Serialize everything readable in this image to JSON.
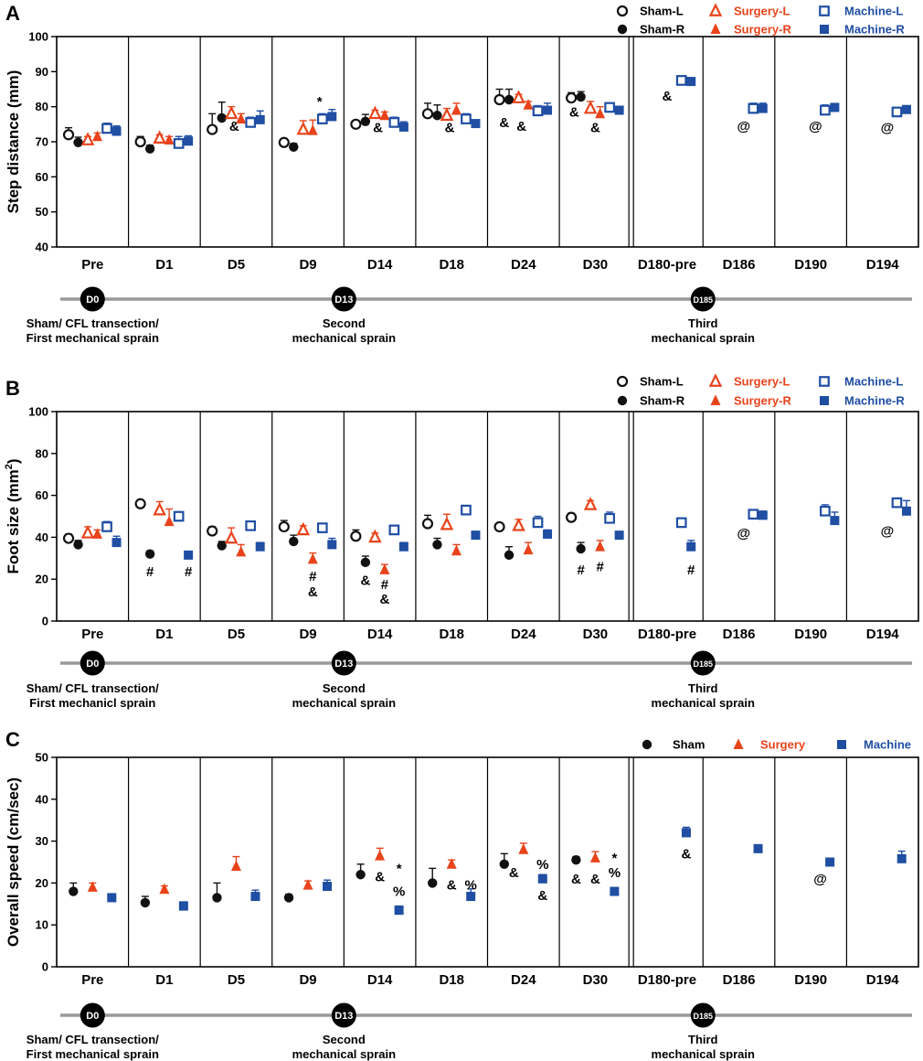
{
  "colors": {
    "sham": "#111111",
    "surgery": "#e8431a",
    "machine": "#1f4ea3",
    "timeline": "#999999"
  },
  "categories": [
    "Pre",
    "D1",
    "D5",
    "D9",
    "D14",
    "D18",
    "D24",
    "D30",
    "D180-pre",
    "D186",
    "D190",
    "D194"
  ],
  "timeline_events": [
    {
      "badge": "D0",
      "lines": [
        "Sham/ CFL transection/",
        "First mechanical sprain"
      ],
      "index": 0
    },
    {
      "badge": "D13",
      "lines": [
        "Second",
        "mechanical sprain"
      ],
      "index": 3.5
    },
    {
      "badge": "D185",
      "lines": [
        "Third",
        "mechanical sprain"
      ],
      "index": 8.5
    }
  ],
  "chart_data": [
    {
      "type": "scatter",
      "panel": "A",
      "ylabel": "Step distance (mm)",
      "ylim": [
        40,
        100
      ],
      "yticks": [
        40,
        50,
        60,
        70,
        80,
        90,
        100
      ],
      "categories": [
        "Pre",
        "D1",
        "D5",
        "D9",
        "D14",
        "D18",
        "D24",
        "D30",
        "D180-pre",
        "D186",
        "D190",
        "D194"
      ],
      "timeline_lines": [
        [
          "Sham/ CFL transection/",
          "First mechanical sprain"
        ],
        [
          "Second",
          "mechanical sprain"
        ],
        [
          "Third",
          "mechanical sprain"
        ]
      ],
      "legend": [
        "Sham-L",
        "Sham-R",
        "Surgery-L",
        "Surgery-R",
        "Machine-L",
        "Machine-R"
      ],
      "series": [
        {
          "name": "Sham-L",
          "group": "sham",
          "filled": false,
          "offset": -2.5,
          "values": [
            72,
            70,
            73.5,
            69.8,
            75,
            78,
            82,
            82.5,
            null,
            null,
            null,
            null
          ],
          "errors": [
            2,
            1.5,
            4.5,
            1,
            1,
            3,
            3,
            1.5,
            null,
            null,
            null,
            null
          ]
        },
        {
          "name": "Sham-R",
          "group": "sham",
          "filled": true,
          "offset": -1.5,
          "values": [
            69.8,
            68,
            76.8,
            68.5,
            75.8,
            77.5,
            82,
            82.8,
            null,
            null,
            null,
            null
          ],
          "errors": [
            1.5,
            1,
            4.5,
            1,
            2,
            3,
            3,
            1.5,
            null,
            null,
            null,
            null
          ]
        },
        {
          "name": "Surgery-L",
          "group": "surgery",
          "filled": false,
          "offset": -0.5,
          "values": [
            70.5,
            71,
            78,
            73.5,
            78,
            77.5,
            82.5,
            79.5,
            null,
            null,
            null,
            null
          ],
          "errors": [
            1,
            1,
            2,
            2.5,
            1,
            2,
            1,
            2,
            null,
            null,
            null,
            null
          ]
        },
        {
          "name": "Surgery-R",
          "group": "surgery",
          "filled": true,
          "offset": 0.5,
          "values": [
            71.5,
            70.5,
            76.5,
            73.2,
            77.5,
            79,
            80.5,
            78,
            null,
            null,
            null,
            null
          ],
          "errors": [
            1,
            1,
            1.5,
            3,
            1,
            2,
            1,
            2,
            null,
            null,
            null,
            null
          ]
        },
        {
          "name": "Machine-L",
          "group": "machine",
          "filled": false,
          "offset": 1.5,
          "values": [
            73.8,
            69.5,
            75.5,
            76.5,
            75.5,
            76.5,
            78.8,
            79.8,
            87.5,
            79.5,
            79,
            78.5
          ],
          "errors": [
            1.5,
            2,
            1.5,
            1.5,
            1.5,
            1.5,
            1.5,
            1,
            1,
            1.5,
            1.5,
            1
          ]
        },
        {
          "name": "Machine-R",
          "group": "machine",
          "filled": true,
          "offset": 2.5,
          "values": [
            73,
            70.2,
            76.3,
            77.2,
            74.2,
            75.2,
            79,
            79,
            87.2,
            79.5,
            79.8,
            79.2
          ],
          "errors": [
            1.5,
            1.5,
            2.5,
            2,
            1.5,
            1,
            2,
            1,
            0.5,
            1.5,
            1,
            1
          ]
        }
      ],
      "annotations": [
        {
          "text": "&",
          "cat": 2,
          "off": -0.2,
          "y": 74.5
        },
        {
          "text": "*",
          "cat": 3,
          "off": 1.2,
          "y": 81.5
        },
        {
          "text": "&",
          "cat": 4,
          "off": -0.2,
          "y": 74
        },
        {
          "text": "&",
          "cat": 5,
          "off": -0.2,
          "y": 74
        },
        {
          "text": "&",
          "cat": 6,
          "off": -2,
          "y": 75.5
        },
        {
          "text": "&",
          "cat": 6,
          "off": -0.2,
          "y": 74.5
        },
        {
          "text": "&",
          "cat": 7,
          "off": -2.2,
          "y": 78.5
        },
        {
          "text": "&",
          "cat": 7,
          "off": 0,
          "y": 74
        },
        {
          "text": "&",
          "cat": 8,
          "off": 0,
          "y": 83
        },
        {
          "text": "@",
          "cat": 9,
          "off": 0.5,
          "y": 74.5
        },
        {
          "text": "@",
          "cat": 10,
          "off": 0.5,
          "y": 74.5
        },
        {
          "text": "@",
          "cat": 11,
          "off": 0.5,
          "y": 74
        }
      ]
    },
    {
      "type": "scatter",
      "panel": "B",
      "ylabel": "Foot size (mm",
      "ylabel_sup": "2",
      "ylabel_end": ")",
      "ylim": [
        0,
        100
      ],
      "yticks": [
        0,
        20,
        40,
        60,
        80,
        100
      ],
      "categories": [
        "Pre",
        "D1",
        "D5",
        "D9",
        "D14",
        "D18",
        "D24",
        "D30",
        "D180-pre",
        "D186",
        "D190",
        "D194"
      ],
      "timeline_lines": [
        [
          "Sham/ CFL transection/",
          "First mechanicl sprain"
        ],
        [
          "Second",
          "mechanical sprain"
        ],
        [
          "Third",
          "mechanical sprain"
        ]
      ],
      "legend": [
        "Sham-L",
        "Sham-R",
        "Surgery-L",
        "Surgery-R",
        "Machine-L",
        "Machine-R"
      ],
      "series": [
        {
          "name": "Sham-L",
          "group": "sham",
          "filled": false,
          "offset": -2.5,
          "values": [
            39.5,
            56,
            43,
            45,
            40.5,
            46.5,
            45,
            49.5,
            null,
            null,
            null,
            null
          ],
          "errors": [
            2,
            1,
            2,
            3,
            3,
            4,
            1,
            2,
            null,
            null,
            null,
            null
          ]
        },
        {
          "name": "Sham-R",
          "group": "sham",
          "filled": true,
          "offset": -1.5,
          "values": [
            36.5,
            32,
            36,
            38,
            28,
            36.5,
            31.5,
            34.5,
            null,
            null,
            null,
            null
          ],
          "errors": [
            2,
            1.5,
            2,
            3,
            3,
            3,
            4,
            3,
            null,
            null,
            null,
            null
          ]
        },
        {
          "name": "Surgery-L",
          "group": "surgery",
          "filled": false,
          "offset": -0.5,
          "values": [
            42,
            53,
            39.5,
            43.5,
            40,
            46,
            45.5,
            55.5,
            null,
            null,
            null,
            null
          ],
          "errors": [
            3,
            4,
            5,
            2,
            2,
            5,
            3,
            2,
            null,
            null,
            null,
            null
          ]
        },
        {
          "name": "Surgery-R",
          "group": "surgery",
          "filled": true,
          "offset": 0.5,
          "values": [
            41.5,
            47.5,
            33,
            29.5,
            24.5,
            33.5,
            34,
            35.5,
            null,
            null,
            null,
            null
          ],
          "errors": [
            2,
            6,
            3.5,
            3,
            2.5,
            3,
            3.5,
            3,
            null,
            null,
            null,
            null
          ]
        },
        {
          "name": "Machine-L",
          "group": "machine",
          "filled": false,
          "offset": 1.5,
          "values": [
            45,
            50,
            45.5,
            44.5,
            43.5,
            53,
            47,
            49,
            47,
            51,
            52.5,
            56.5
          ],
          "errors": [
            2.5,
            2,
            2,
            2,
            2,
            2,
            3,
            3,
            2,
            2,
            3,
            2
          ]
        },
        {
          "name": "Machine-R",
          "group": "machine",
          "filled": true,
          "offset": 2.5,
          "values": [
            37.5,
            31.5,
            35.5,
            36.5,
            35.5,
            41,
            41.5,
            41,
            35.5,
            50.5,
            48,
            52.5
          ],
          "errors": [
            3,
            1.5,
            2,
            3,
            2,
            1.5,
            2,
            1.5,
            3,
            2,
            4,
            5
          ]
        }
      ],
      "annotations": [
        {
          "text": "#",
          "cat": 1,
          "off": -1.5,
          "y": 23.5
        },
        {
          "text": "#",
          "cat": 1,
          "off": 2.5,
          "y": 23.5
        },
        {
          "text": "#",
          "cat": 3,
          "off": 0.5,
          "y": 21.5
        },
        {
          "text": "&",
          "cat": 3,
          "off": 0.5,
          "y": 14
        },
        {
          "text": "&",
          "cat": 4,
          "off": -1.5,
          "y": 19.5
        },
        {
          "text": "#",
          "cat": 4,
          "off": 0.5,
          "y": 17.5
        },
        {
          "text": "&",
          "cat": 4,
          "off": 0.5,
          "y": 10.5
        },
        {
          "text": "#",
          "cat": 7,
          "off": -1.5,
          "y": 24.5
        },
        {
          "text": "#",
          "cat": 7,
          "off": 0.5,
          "y": 26
        },
        {
          "text": "#",
          "cat": 8,
          "off": 2.5,
          "y": 24.5
        },
        {
          "text": "@",
          "cat": 9,
          "off": 0.5,
          "y": 42
        },
        {
          "text": "@",
          "cat": 11,
          "off": 0.5,
          "y": 43
        }
      ]
    },
    {
      "type": "scatter",
      "panel": "C",
      "ylabel": "Overall speed  (cm/sec)",
      "ylim": [
        0,
        50
      ],
      "yticks": [
        0,
        10,
        20,
        30,
        40,
        50
      ],
      "categories": [
        "Pre",
        "D1",
        "D5",
        "D9",
        "D14",
        "D18",
        "D24",
        "D30",
        "D180-pre",
        "D186",
        "D190",
        "D194"
      ],
      "timeline_lines": [
        [
          "Sham/ CFL transection/",
          "First mechanical sprain"
        ],
        [
          "Second",
          "mechanical sprain"
        ],
        [
          "Third",
          "mechanical sprain"
        ]
      ],
      "legend": [
        "Sham",
        "Surgery",
        "Machine"
      ],
      "series": [
        {
          "name": "Sham",
          "group": "sham",
          "filled": true,
          "offset": -2,
          "values": [
            18,
            15.3,
            16.5,
            16.5,
            22,
            20,
            24.5,
            25.5,
            null,
            null,
            null,
            null
          ],
          "errors": [
            2,
            1.5,
            3.5,
            0.8,
            2.5,
            3.5,
            2.5,
            0.8,
            null,
            null,
            null,
            null
          ]
        },
        {
          "name": "Surgery",
          "group": "surgery",
          "filled": true,
          "offset": 0,
          "values": [
            19,
            18.5,
            24,
            19.5,
            26.5,
            24.5,
            28,
            26,
            null,
            null,
            null,
            null
          ],
          "errors": [
            1,
            0.8,
            2.3,
            1,
            1.8,
            1,
            1.5,
            1.5,
            null,
            null,
            null,
            null
          ]
        },
        {
          "name": "Machine",
          "group": "machine",
          "filled": true,
          "offset": 2,
          "values": [
            16.5,
            14.5,
            16.8,
            19.2,
            13.5,
            16.8,
            21,
            18,
            32,
            28.2,
            25,
            25.8
          ],
          "errors": [
            0.5,
            1,
            1.5,
            1.5,
            1,
            1.8,
            1,
            0.5,
            1.3,
            0.5,
            0.5,
            1.8
          ]
        }
      ],
      "annotations": [
        {
          "text": "&",
          "cat": 4,
          "off": 0,
          "y": 21.5
        },
        {
          "text": "*",
          "cat": 4,
          "off": 2,
          "y": 23.5
        },
        {
          "text": "%",
          "cat": 4,
          "off": 2,
          "y": 18
        },
        {
          "text": "&",
          "cat": 5,
          "off": 0,
          "y": 19.5
        },
        {
          "text": "%",
          "cat": 5,
          "off": 2,
          "y": 19.5
        },
        {
          "text": "&",
          "cat": 6,
          "off": -1,
          "y": 22.5
        },
        {
          "text": "%",
          "cat": 6,
          "off": 2,
          "y": 24.5
        },
        {
          "text": "&",
          "cat": 6,
          "off": 2,
          "y": 17
        },
        {
          "text": "&",
          "cat": 7,
          "off": -2,
          "y": 21
        },
        {
          "text": "&",
          "cat": 7,
          "off": 0,
          "y": 21
        },
        {
          "text": "*",
          "cat": 7,
          "off": 2,
          "y": 26
        },
        {
          "text": "%",
          "cat": 7,
          "off": 2,
          "y": 22.5
        },
        {
          "text": "&",
          "cat": 8,
          "off": 2,
          "y": 27
        },
        {
          "text": "@",
          "cat": 10,
          "off": 1,
          "y": 21
        }
      ]
    }
  ]
}
